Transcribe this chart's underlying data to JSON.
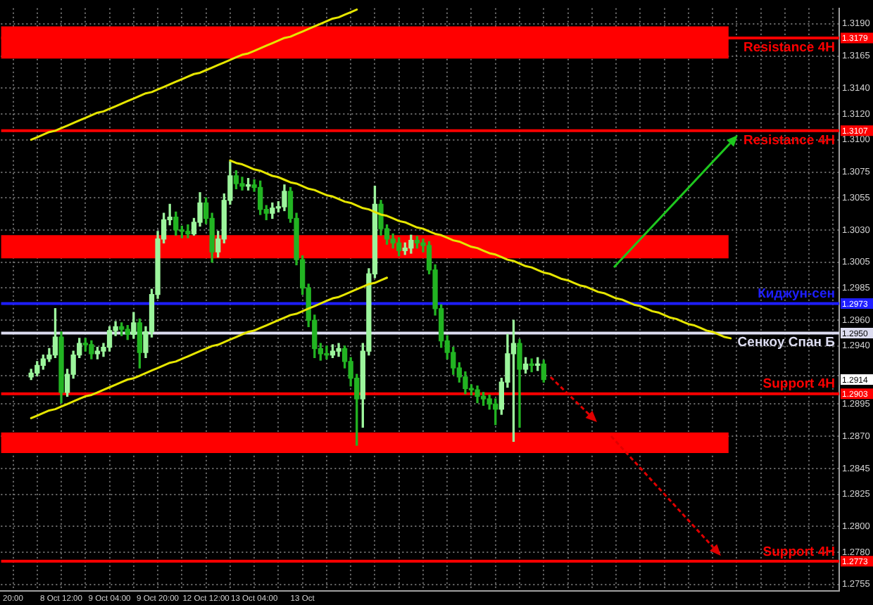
{
  "chart_data": {
    "type": "candlestick",
    "categories": [
      null,
      null,
      "20:00",
      null,
      null,
      null,
      null,
      null,
      null,
      null,
      "8 Oct 12:00",
      null,
      null,
      null,
      null,
      null,
      null,
      null,
      "9 Oct 04:00",
      null,
      null,
      null,
      null,
      null,
      null,
      null,
      "9 Oct 20:00",
      null,
      null,
      null,
      null,
      null,
      null,
      null,
      "12 Oct 12:00",
      null,
      null,
      null,
      null,
      null,
      null,
      null,
      "13 Oct 04:00",
      null,
      null,
      null,
      null,
      null,
      null,
      null,
      "13 Oct",
      null,
      null,
      null,
      null,
      null,
      null,
      null,
      null,
      null,
      null,
      null,
      null,
      null,
      null,
      null,
      null,
      null,
      null,
      null,
      null,
      null,
      null,
      null,
      null,
      null,
      null,
      null,
      null,
      null,
      null,
      null,
      null,
      null,
      null,
      null,
      null,
      null,
      null,
      null,
      null,
      null,
      null,
      null,
      null,
      null,
      null,
      null,
      null,
      null,
      null,
      null,
      null,
      null,
      null,
      null,
      null,
      null,
      null,
      null,
      null,
      null,
      null,
      null,
      null,
      null,
      null,
      null,
      null,
      null,
      null,
      null,
      null,
      null,
      null,
      null,
      null,
      null,
      null,
      null,
      null,
      null,
      null,
      null,
      null,
      null,
      null,
      null,
      null,
      null
    ],
    "ohlc": [
      null,
      null,
      null,
      null,
      null,
      [
        1.2916,
        1.2922,
        1.2914,
        1.2919
      ],
      [
        1.2919,
        1.2928,
        1.2917,
        1.2925
      ],
      [
        1.2925,
        1.2933,
        1.2922,
        1.293
      ],
      [
        1.293,
        1.2938,
        1.2928,
        1.2933
      ],
      [
        1.2933,
        1.2969,
        1.2931,
        1.2947
      ],
      [
        1.2947,
        1.2951,
        1.2896,
        1.2904
      ],
      [
        1.2904,
        1.2922,
        1.2901,
        1.2918
      ],
      [
        1.2918,
        1.2936,
        1.2915,
        1.2933
      ],
      [
        1.2933,
        1.2946,
        1.2931,
        1.2942
      ],
      [
        1.2942,
        1.2946,
        1.2936,
        1.2941
      ],
      [
        1.2941,
        1.2944,
        1.293,
        1.2934
      ],
      [
        1.2934,
        1.2939,
        1.293,
        1.2936
      ],
      [
        1.2936,
        1.2942,
        1.2932,
        1.2939
      ],
      [
        1.2939,
        1.2955,
        1.2936,
        1.2952
      ],
      [
        1.2952,
        1.2959,
        1.2948,
        1.2955
      ],
      [
        1.2955,
        1.2958,
        1.2948,
        1.2953
      ],
      [
        1.2953,
        1.2956,
        1.2945,
        1.2949
      ],
      [
        1.2949,
        1.2966,
        1.2946,
        1.2958
      ],
      [
        1.2958,
        1.2961,
        1.2923,
        1.2935
      ],
      [
        1.2935,
        1.2955,
        1.2931,
        1.2951
      ],
      [
        1.2951,
        1.2984,
        1.2947,
        1.298
      ],
      [
        1.298,
        1.3029,
        1.2977,
        1.3023
      ],
      [
        1.3023,
        1.3043,
        1.302,
        1.3038
      ],
      [
        1.3038,
        1.305,
        1.3034,
        1.304
      ],
      [
        1.304,
        1.3044,
        1.3026,
        1.303
      ],
      [
        1.303,
        1.3033,
        1.3024,
        1.3029
      ],
      [
        1.3029,
        1.3034,
        1.3024,
        1.3027
      ],
      [
        1.3027,
        1.3039,
        1.3026,
        1.3036
      ],
      [
        1.3036,
        1.3059,
        1.3033,
        1.3051
      ],
      [
        1.3051,
        1.3055,
        1.3035,
        1.3039
      ],
      [
        1.3039,
        1.3043,
        1.3005,
        1.3013
      ],
      [
        1.3013,
        1.3029,
        1.3009,
        1.3023
      ],
      [
        1.3023,
        1.3058,
        1.302,
        1.3053
      ],
      [
        1.3053,
        1.3083,
        1.305,
        1.3072
      ],
      [
        1.3072,
        1.3076,
        1.3062,
        1.3066
      ],
      [
        1.3066,
        1.3071,
        1.3061,
        1.3064
      ],
      [
        1.3064,
        1.307,
        1.3061,
        1.3065
      ],
      [
        1.3065,
        1.3069,
        1.306,
        1.3063
      ],
      [
        1.3063,
        1.3068,
        1.3042,
        1.3046
      ],
      [
        1.3046,
        1.3049,
        1.3038,
        1.3043
      ],
      [
        1.3043,
        1.3051,
        1.3039,
        1.3047
      ],
      [
        1.3047,
        1.3052,
        1.3044,
        1.3048
      ],
      [
        1.3048,
        1.3065,
        1.3045,
        1.306
      ],
      [
        1.306,
        1.3063,
        1.3036,
        1.3039
      ],
      [
        1.3039,
        1.3043,
        1.3003,
        1.3007
      ],
      [
        1.3007,
        1.301,
        1.298,
        1.2985
      ],
      [
        1.2985,
        1.2988,
        1.2955,
        1.296
      ],
      [
        1.296,
        1.2964,
        1.2931,
        1.2938
      ],
      [
        1.2938,
        1.2942,
        1.2929,
        1.2934
      ],
      [
        1.2934,
        1.294,
        1.293,
        1.2933
      ],
      [
        1.2933,
        1.2941,
        1.2931,
        1.2936
      ],
      [
        1.2936,
        1.2942,
        1.2932,
        1.2938
      ],
      [
        1.2938,
        1.294,
        1.2923,
        1.2928
      ],
      [
        1.2928,
        1.2931,
        1.2909,
        1.2915
      ],
      [
        1.2915,
        1.2918,
        1.2863,
        1.2899
      ],
      [
        1.2899,
        1.2942,
        1.2877,
        1.2936
      ],
      [
        1.2936,
        1.3,
        1.2933,
        1.2996
      ],
      [
        1.2996,
        1.3064,
        1.2993,
        1.305
      ],
      [
        1.305,
        1.3053,
        1.3026,
        1.3031
      ],
      [
        1.3031,
        1.3034,
        1.3019,
        1.3023
      ],
      [
        1.3023,
        1.3027,
        1.3016,
        1.302
      ],
      [
        1.302,
        1.3024,
        1.301,
        1.3014
      ],
      [
        1.3014,
        1.302,
        1.3011,
        1.3016
      ],
      [
        1.3016,
        1.3026,
        1.3012,
        1.3022
      ],
      [
        1.3022,
        1.3025,
        1.3016,
        1.302
      ],
      [
        1.302,
        1.3023,
        1.3013,
        1.3018
      ],
      [
        1.3018,
        1.3021,
        1.2996,
        1.2999
      ],
      [
        1.2999,
        1.3003,
        1.2964,
        1.2969
      ],
      [
        1.2969,
        1.2972,
        1.2939,
        1.2944
      ],
      [
        1.2944,
        1.2948,
        1.293,
        1.2935
      ],
      [
        1.2935,
        1.2939,
        1.2918,
        1.2923
      ],
      [
        1.2923,
        1.2927,
        1.2912,
        1.2916
      ],
      [
        1.2916,
        1.292,
        1.2903,
        1.2907
      ],
      [
        1.2907,
        1.291,
        1.2902,
        1.2906
      ],
      [
        1.2906,
        1.2909,
        1.2896,
        1.2901
      ],
      [
        1.2901,
        1.2904,
        1.2894,
        1.2899
      ],
      [
        1.2899,
        1.2902,
        1.2891,
        1.2895
      ],
      [
        1.2895,
        1.2899,
        1.2879,
        1.2891
      ],
      [
        1.2891,
        1.2915,
        1.2887,
        1.2912
      ],
      [
        1.2912,
        1.2949,
        1.2908,
        1.2934
      ],
      [
        1.2934,
        1.296,
        1.2866,
        1.2942
      ],
      [
        1.2942,
        1.2945,
        1.2877,
        1.2922
      ],
      [
        1.2922,
        1.2931,
        1.2919,
        1.2926
      ],
      [
        1.2926,
        1.293,
        1.292,
        1.2925
      ],
      [
        1.2925,
        1.2931,
        1.2921,
        1.2926
      ],
      [
        1.2926,
        1.2929,
        1.2912,
        1.2914
      ],
      null,
      null,
      null,
      null,
      null,
      null,
      null,
      null,
      null,
      null,
      null,
      null,
      null,
      null,
      null,
      null,
      null,
      null,
      null,
      null,
      null,
      null,
      null,
      null,
      null,
      null,
      null,
      null,
      null,
      null,
      null,
      null,
      null,
      null,
      null,
      null,
      null,
      null,
      null,
      null,
      null,
      null,
      null,
      null,
      null,
      null,
      null,
      null,
      null
    ],
    "colors": [
      null,
      null,
      null,
      null,
      null,
      "#9cf59c",
      "#9cf59c",
      "#9cf59c",
      "#9cf59c",
      "#9cf59c",
      "#22b422",
      "#9cf59c",
      "#9cf59c",
      "#9cf59c",
      "#22b422",
      "#22b422",
      "#9cf59c",
      "#9cf59c",
      "#9cf59c",
      "#9cf59c",
      "#22b422",
      "#22b422",
      "#9cf59c",
      "#22b422",
      "#9cf59c",
      "#9cf59c",
      "#9cf59c",
      "#9cf59c",
      "#9cf59c",
      "#22b422",
      "#22b422",
      "#22b422",
      "#9cf59c",
      "#9cf59c",
      "#22b422",
      "#22b422",
      "#9cf59c",
      "#9cf59c",
      "#9cf59c",
      "#22b422",
      "#22b422",
      "#9cf59c",
      "#22b422",
      "#22b422",
      "#22b422",
      "#9cf59c",
      "#9cf59c",
      "#9cf59c",
      "#22b422",
      "#22b422",
      "#22b422",
      "#22b422",
      "#22b422",
      "#22b422",
      "#22b422",
      "#9cf59c",
      "#9cf59c",
      "#22b422",
      "#22b422",
      "#22b422",
      "#9cf59c",
      "#9cf59c",
      "#9cf59c",
      "#22b422",
      "#22b422",
      "#22b422",
      "#22b422",
      "#9cf59c",
      "#9cf59c",
      "#22b422",
      "#22b422",
      "#22b422",
      "#22b422",
      "#22b422",
      "#22b422",
      "#22b422",
      "#22b422",
      "#22b422",
      "#22b422",
      "#22b422",
      "#22b422",
      "#22b422",
      "#22b422",
      "#9cf59c",
      "#9cf59c",
      "#9cf59c",
      "#22b422",
      "#9cf59c",
      "#22b422",
      "#9cf59c",
      "#22b422",
      null,
      null,
      null,
      null,
      null,
      null,
      null,
      null,
      null,
      null,
      null,
      null,
      null,
      null,
      null,
      null,
      null,
      null,
      null,
      null,
      null,
      null,
      null,
      null,
      null,
      null,
      null,
      null,
      null,
      null,
      null,
      null,
      null,
      null,
      null,
      null,
      null,
      null,
      null,
      null,
      null,
      null,
      null,
      null,
      null,
      null,
      null,
      null,
      null
    ],
    "series": [
      {
        "type": "line",
        "color": "#e6e600",
        "values": [
          null,
          null,
          null,
          null,
          null,
          1.31,
          1.3102,
          1.3104,
          1.3106,
          1.3107,
          1.3109,
          1.3111,
          1.3113,
          1.3115,
          1.3117,
          1.3119,
          1.3121,
          1.3122,
          1.3124,
          1.3126,
          1.3128,
          1.313,
          1.3132,
          1.3134,
          1.3136,
          1.3137,
          1.3139,
          1.3141,
          1.3143,
          1.3145,
          1.3147,
          1.3149,
          1.3151,
          1.3152,
          1.3154,
          1.3156,
          1.3158,
          1.316,
          1.3162,
          1.3164,
          1.3166,
          1.3167,
          1.3169,
          1.3171,
          1.3173,
          1.3175,
          1.3177,
          1.3179,
          1.318,
          1.3182,
          1.3184,
          1.3186,
          1.3188,
          1.319,
          1.3192,
          1.3194,
          1.3195,
          1.3197,
          1.3199,
          1.3201,
          null,
          null,
          null,
          null,
          null,
          null,
          null,
          null,
          null,
          null,
          null,
          null,
          null,
          null,
          null,
          null,
          null,
          null,
          null,
          null,
          null,
          null,
          null,
          null,
          null,
          null,
          null,
          null,
          null,
          null,
          null,
          null,
          null,
          null,
          null,
          null,
          null,
          null,
          null,
          null,
          null,
          null,
          null,
          null,
          null,
          null,
          null,
          null,
          null,
          null,
          null,
          null,
          null,
          null,
          null,
          null,
          null,
          null,
          null,
          null,
          null,
          null,
          null,
          null,
          null,
          null,
          null,
          null,
          null,
          null,
          null,
          null,
          null,
          null,
          null,
          null,
          null,
          null,
          null,
          null
        ]
      },
      {
        "type": "line",
        "color": "#e6e600",
        "values": [
          null,
          null,
          null,
          null,
          null,
          1.2884,
          1.2886,
          1.2888,
          1.289,
          1.2891,
          1.2893,
          1.2895,
          1.2897,
          1.2899,
          1.2901,
          1.2902,
          1.2904,
          1.2906,
          1.2908,
          1.291,
          1.2912,
          1.2914,
          1.2915,
          1.2917,
          1.2919,
          1.2921,
          1.2923,
          1.2925,
          1.2927,
          1.2928,
          1.293,
          1.2932,
          1.2934,
          1.2936,
          1.2938,
          1.294,
          1.2941,
          1.2943,
          1.2945,
          1.2947,
          1.2949,
          1.2951,
          1.2952,
          1.2954,
          1.2956,
          1.2958,
          1.296,
          1.2962,
          1.2964,
          1.2965,
          1.2967,
          1.2969,
          1.2971,
          1.2973,
          1.2975,
          1.2977,
          1.2978,
          1.298,
          1.2982,
          1.2984,
          1.2986,
          1.2988,
          1.2989,
          1.2991,
          1.2993,
          null,
          null,
          null,
          null,
          null,
          null,
          null,
          null,
          null,
          null,
          null,
          null,
          null,
          null,
          null,
          null,
          null,
          null,
          null,
          null,
          null,
          null,
          null,
          null,
          null,
          null,
          null,
          null,
          null,
          null,
          null,
          null,
          null,
          null,
          null,
          null,
          null,
          null,
          null,
          null,
          null,
          null,
          null,
          null,
          null,
          null,
          null,
          null,
          null,
          null,
          null,
          null,
          null,
          null,
          null,
          null,
          null,
          null,
          null,
          null,
          null,
          null,
          null,
          null,
          null,
          null,
          null,
          null,
          null,
          null,
          null,
          null,
          null,
          null,
          null
        ]
      },
      {
        "type": "line",
        "color": "#e6e600",
        "values": [
          null,
          null,
          null,
          null,
          null,
          null,
          null,
          null,
          null,
          null,
          null,
          null,
          null,
          null,
          null,
          null,
          null,
          null,
          null,
          null,
          null,
          null,
          null,
          null,
          null,
          null,
          null,
          null,
          null,
          null,
          null,
          null,
          null,
          null,
          null,
          null,
          null,
          null,
          1.3084,
          1.3082,
          1.3081,
          1.3079,
          1.3077,
          1.3076,
          1.3074,
          1.3072,
          1.3071,
          1.3069,
          1.3067,
          1.3066,
          1.3064,
          1.3062,
          1.3061,
          1.3059,
          1.3057,
          1.3056,
          1.3054,
          1.3052,
          1.3051,
          1.3049,
          1.3047,
          1.3046,
          1.3044,
          1.3042,
          1.3041,
          1.3039,
          1.3037,
          1.3036,
          1.3034,
          1.3032,
          1.3031,
          1.3029,
          1.3027,
          1.3026,
          1.3024,
          1.3022,
          1.3021,
          1.3019,
          1.3017,
          1.3016,
          1.3014,
          1.3012,
          1.3011,
          1.3009,
          1.3007,
          1.3006,
          1.3004,
          1.3002,
          1.3001,
          1.2999,
          1.2997,
          1.2996,
          1.2994,
          1.2992,
          1.2991,
          1.2989,
          1.2987,
          1.2986,
          1.2984,
          1.2982,
          1.2981,
          1.2979,
          1.2977,
          1.2976,
          1.2974,
          1.2972,
          1.2971,
          1.2969,
          1.2967,
          1.2966,
          1.2964,
          1.2962,
          1.2961,
          1.2959,
          1.2957,
          1.2956,
          1.2954,
          1.2952,
          1.2951,
          1.2949,
          1.2947,
          1.2946,
          null,
          null,
          null,
          null,
          null,
          null,
          null,
          null,
          null,
          null,
          null,
          null,
          null,
          null,
          null,
          null,
          null,
          null
        ]
      }
    ],
    "ylim": [
      1.275,
      1.3202
    ],
    "yticks": [
      {
        "value": 1.2755,
        "label": "1.2755"
      },
      {
        "value": 1.278,
        "label": "1.2780"
      },
      {
        "value": 1.28,
        "label": "1.2800"
      },
      {
        "value": 1.2825,
        "label": "1.2825"
      },
      {
        "value": 1.2845,
        "label": "1.2845"
      },
      {
        "value": 1.287,
        "label": "1.2870"
      },
      {
        "value": 1.2895,
        "label": "1.2895"
      },
      {
        "value": 1.2917,
        "label": null
      },
      {
        "value": 1.294,
        "label": "1.2940"
      },
      {
        "value": 1.296,
        "label": "1.2960"
      },
      {
        "value": 1.2985,
        "label": "1.2985"
      },
      {
        "value": 1.3005,
        "label": "1.3005"
      },
      {
        "value": 1.303,
        "label": "1.3030"
      },
      {
        "value": 1.3055,
        "label": "1.3055"
      },
      {
        "value": 1.3075,
        "label": "1.3075"
      },
      {
        "value": 1.31,
        "label": "1.3100"
      },
      {
        "value": 1.312,
        "label": "1.3120"
      },
      {
        "value": 1.314,
        "label": "1.3140"
      },
      {
        "value": 1.3165,
        "label": "1.3165"
      },
      {
        "value": 1.319,
        "label": "1.3190"
      }
    ],
    "grid": true,
    "bands": [
      {
        "axis": "y",
        "from": 1.3163,
        "to": 1.3188,
        "color": "#ff0000"
      },
      {
        "axis": "y",
        "from": 1.3008,
        "to": 1.3026,
        "color": "#ff0000"
      },
      {
        "axis": "y",
        "from": 1.2857,
        "to": 1.2873,
        "color": "#ff0000"
      }
    ],
    "ref_lines": [
      {
        "axis": "y",
        "value": 1.3179,
        "label": "Resistance 4H",
        "color": "#ff0000"
      },
      {
        "axis": "y",
        "value": 1.3107,
        "label": "Resistance 4H",
        "color": "#ff0000"
      },
      {
        "axis": "y",
        "value": 1.2973,
        "label": "Киджун-сен",
        "color": "#1e1eff"
      },
      {
        "axis": "y",
        "value": 1.295,
        "label": "Сенкоу Спан Б",
        "color": "#dcdcf0"
      },
      {
        "axis": "y",
        "value": 1.2903,
        "label": "Support 4H",
        "color": "#ff0000"
      },
      {
        "axis": "y",
        "value": 1.2773,
        "label": "Support 4H",
        "color": "#ff0000"
      }
    ],
    "annotations": [
      {
        "text": "1.3179",
        "y": 1.3179
      },
      {
        "text": "1.3107",
        "y": 1.3107
      },
      {
        "text": "1.2973",
        "y": 1.2973
      },
      {
        "text": "1.2950",
        "y": 1.295
      },
      {
        "text": "1.2914",
        "y": 1.2914
      },
      {
        "text": "1.2903",
        "y": 1.2903
      },
      {
        "text": "1.2773",
        "y": 1.2773
      }
    ]
  }
}
